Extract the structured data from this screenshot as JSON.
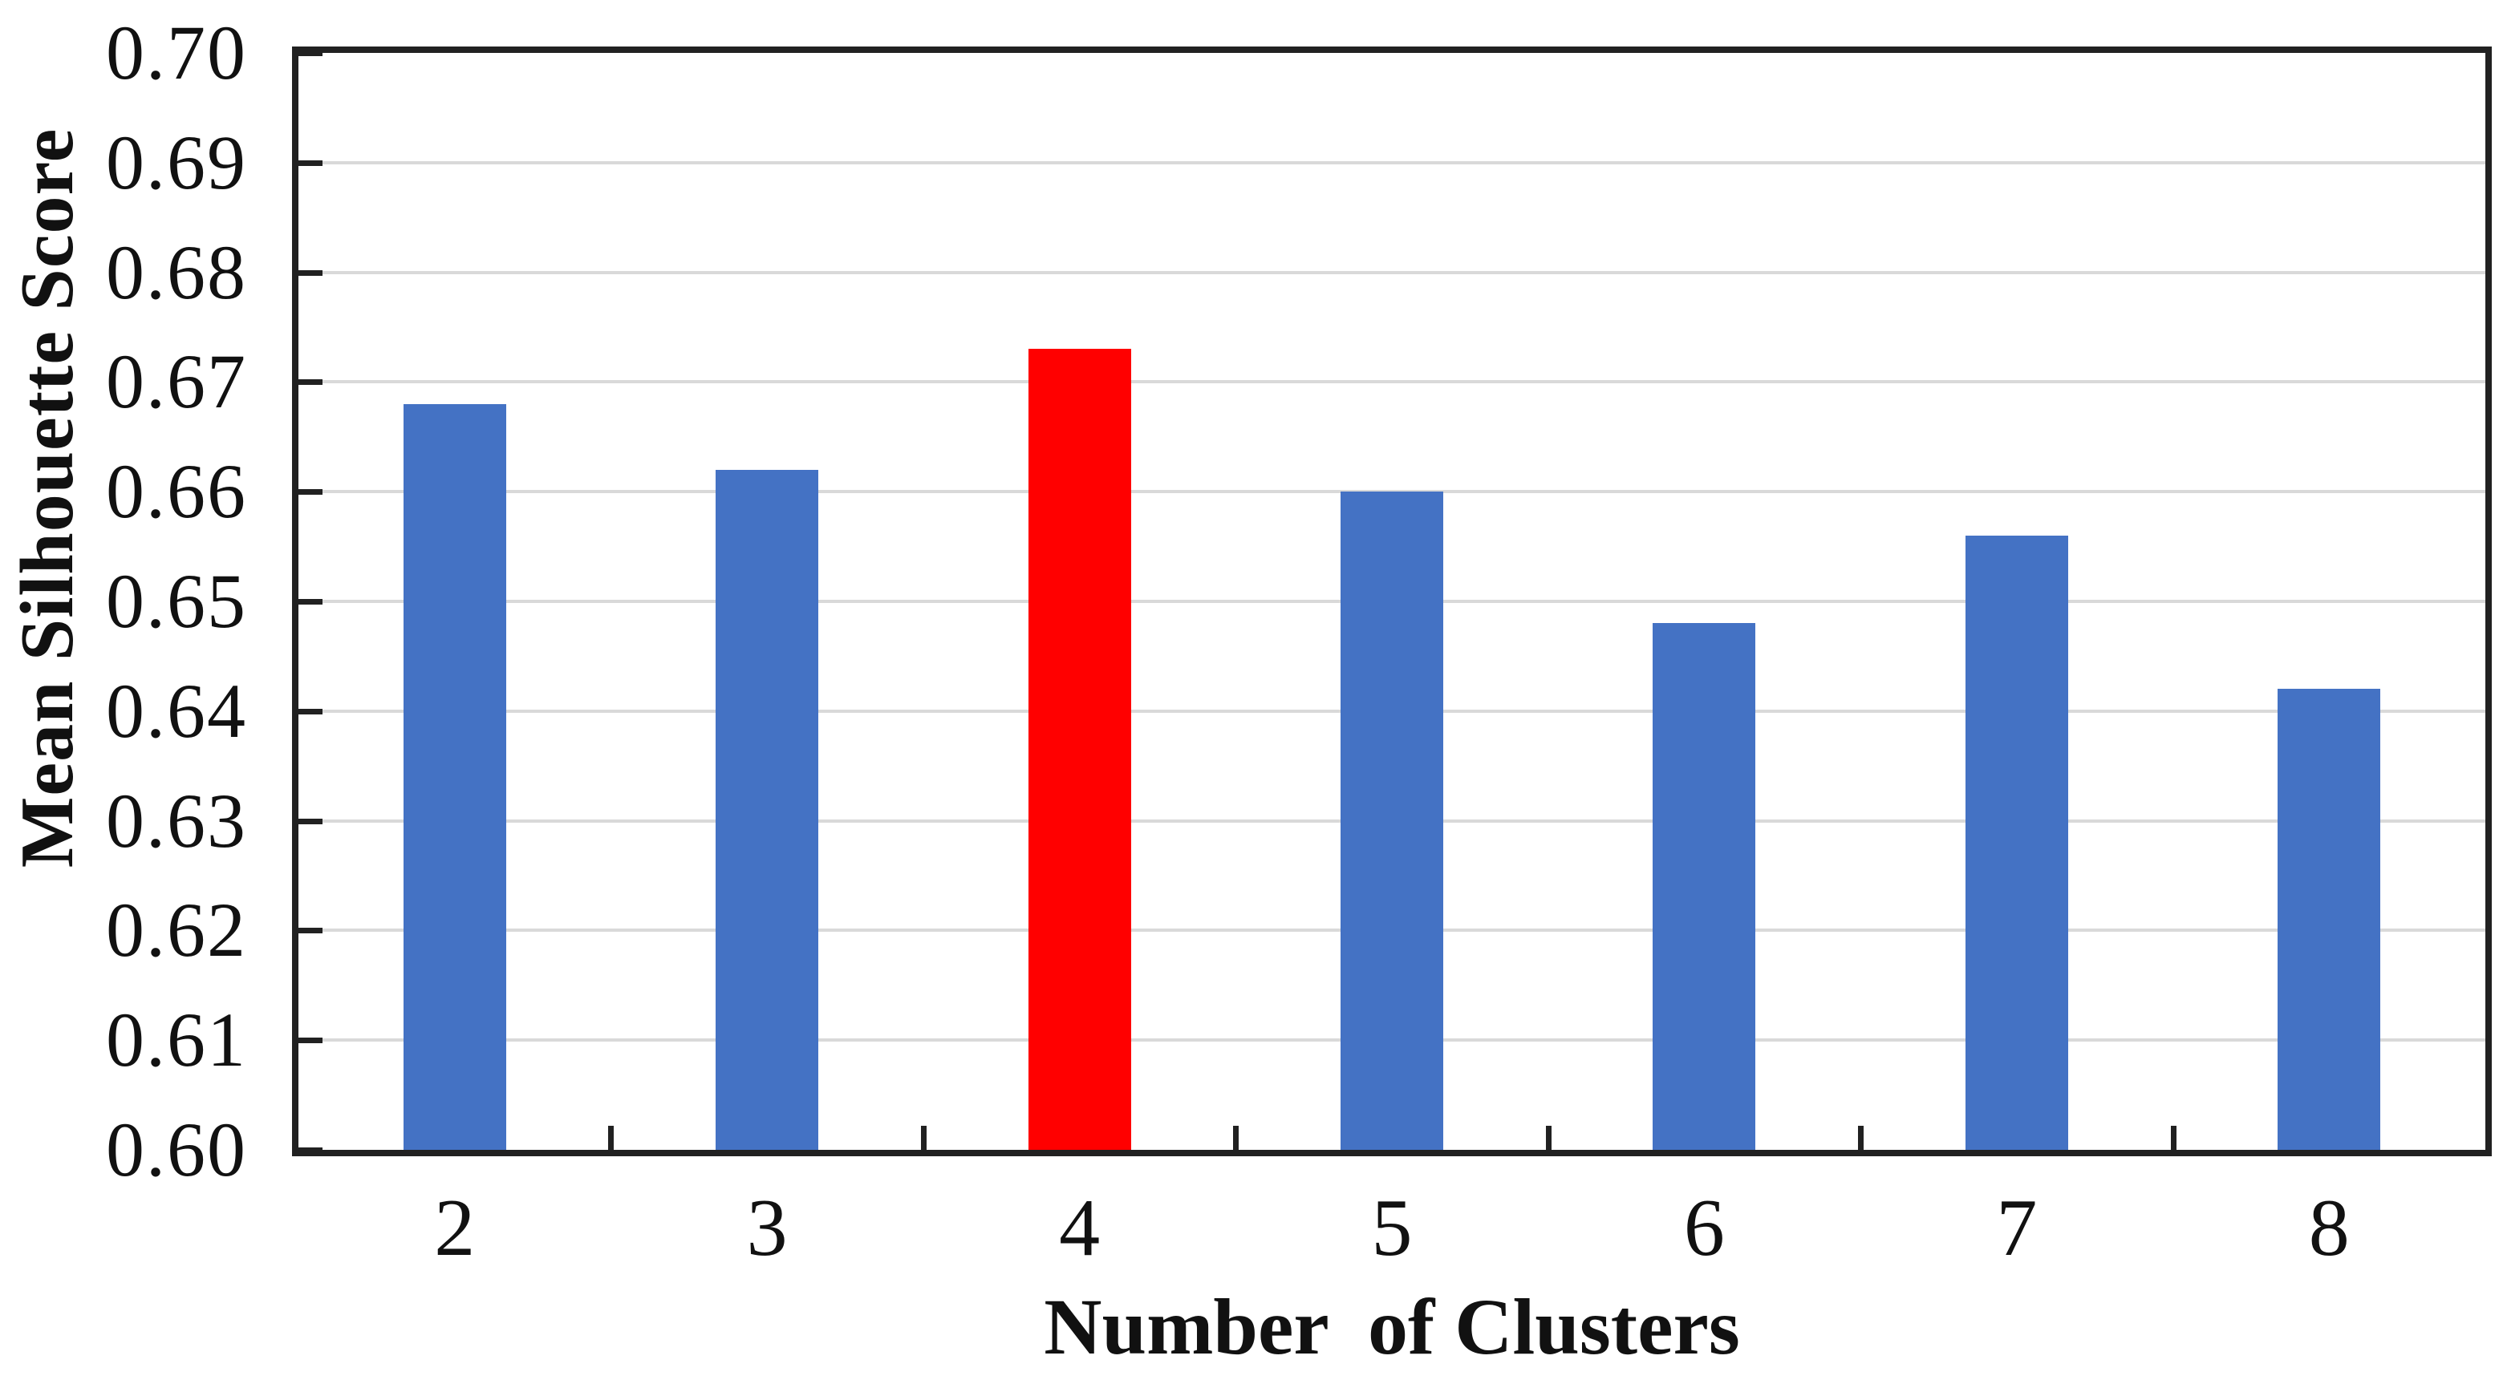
{
  "chart_data": {
    "type": "bar",
    "title": "",
    "xlabel": "Number  of Clusters",
    "ylabel": "Mean Silhouette Score",
    "categories": [
      "2",
      "3",
      "4",
      "5",
      "6",
      "7",
      "8"
    ],
    "values": [
      0.668,
      0.662,
      0.673,
      0.66,
      0.648,
      0.656,
      0.642
    ],
    "ylim": [
      0.6,
      0.7
    ],
    "ytick_step": 0.01,
    "yticks": [
      {
        "label": "0.70",
        "value": 0.7
      },
      {
        "label": "0.69",
        "value": 0.69
      },
      {
        "label": "0.68",
        "value": 0.68
      },
      {
        "label": "0.67",
        "value": 0.67
      },
      {
        "label": "0.66",
        "value": 0.66
      },
      {
        "label": "0.65",
        "value": 0.65
      },
      {
        "label": "0.64",
        "value": 0.64
      },
      {
        "label": "0.63",
        "value": 0.63
      },
      {
        "label": "0.62",
        "value": 0.62
      },
      {
        "label": "0.61",
        "value": 0.61
      },
      {
        "label": "0.60",
        "value": 0.6
      }
    ],
    "grid": "horizontal",
    "legend": "none",
    "bar_color": "#4472c4",
    "highlight": {
      "category": "4",
      "index": 2,
      "color": "#ff0000"
    },
    "axis_color": "#212121",
    "gridline_color": "#d9d9d9",
    "background_color": "#ffffff"
  }
}
